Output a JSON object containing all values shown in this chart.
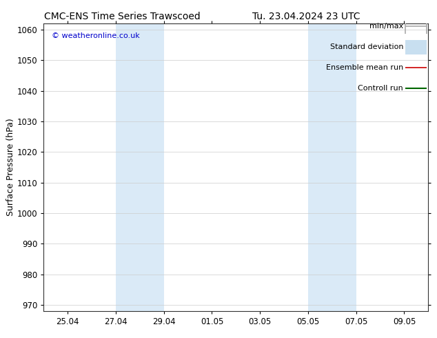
{
  "title_left": "CMC-ENS Time Series Trawscoed",
  "title_right": "Tu. 23.04.2024 23 UTC",
  "ylabel": "Surface Pressure (hPa)",
  "ylim": [
    968,
    1062
  ],
  "yticks": [
    970,
    980,
    990,
    1000,
    1010,
    1020,
    1030,
    1040,
    1050,
    1060
  ],
  "xtick_labels": [
    "25.04",
    "27.04",
    "29.04",
    "01.05",
    "03.05",
    "05.05",
    "07.05",
    "09.05"
  ],
  "xtick_positions": [
    1,
    3,
    5,
    7,
    9,
    11,
    13,
    15
  ],
  "x_min": 0,
  "x_max": 16,
  "shaded_bands": [
    {
      "x_start": 3,
      "x_end": 5
    },
    {
      "x_start": 11,
      "x_end": 13
    }
  ],
  "shaded_color": "#daeaf7",
  "watermark_text": "© weatheronline.co.uk",
  "watermark_color": "#0000cc",
  "legend_items": [
    {
      "label": "min/max",
      "color": "#aaaaaa",
      "lw": 1.2,
      "style": "line_with_caps"
    },
    {
      "label": "Standard deviation",
      "color": "#c8dff0",
      "lw": 7,
      "style": "thick"
    },
    {
      "label": "Ensemble mean run",
      "color": "#cc0000",
      "lw": 1.2,
      "style": "line"
    },
    {
      "label": "Controll run",
      "color": "#006600",
      "lw": 1.5,
      "style": "line"
    }
  ],
  "background_color": "#ffffff",
  "grid_color": "#cccccc",
  "title_fontsize": 10,
  "tick_fontsize": 8.5,
  "ylabel_fontsize": 9,
  "legend_fontsize": 8
}
